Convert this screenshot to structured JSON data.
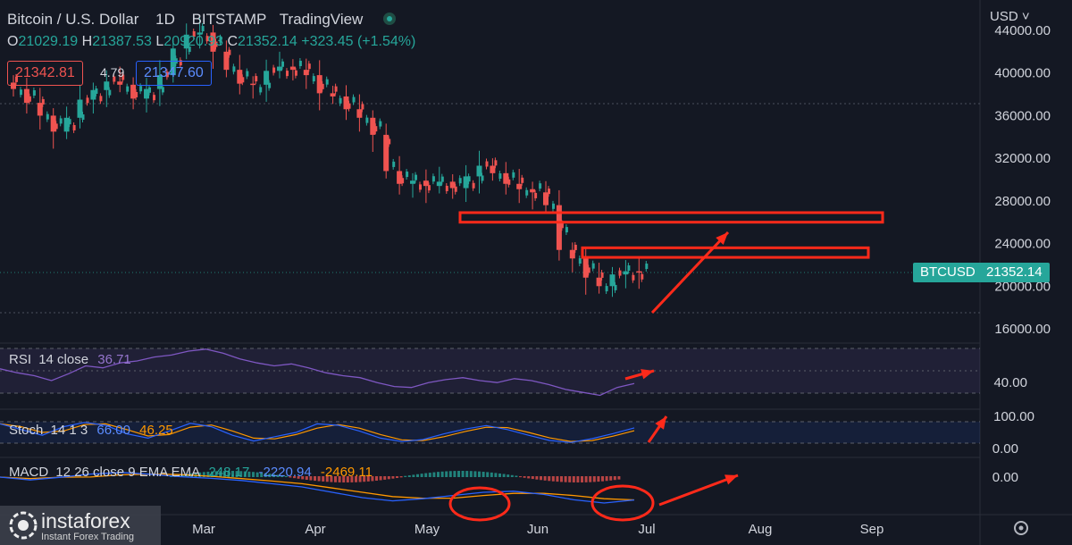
{
  "header": {
    "symbol": "Bitcoin / U.S. Dollar",
    "interval": "1D",
    "exchange": "BITSTAMP",
    "platform": "TradingView",
    "open_label": "O",
    "open_value": "21029.19",
    "high_label": "H",
    "high_value": "21387.53",
    "low_label": "L",
    "low_value": "20920.93",
    "close_label": "C",
    "close_value": "21352.14",
    "change": "+323.45 (+1.54%)"
  },
  "quote": {
    "sell": "21342.81",
    "spread": "4.79",
    "buy": "21347.60"
  },
  "currency_menu": "USD",
  "price_axis": {
    "labels": [
      "44000.00",
      "40000.00",
      "36000.00",
      "32000.00",
      "28000.00",
      "24000.00",
      "20000.00",
      "16000.00"
    ],
    "symbol_tag": "BTCUSD",
    "last_price": "21352.14"
  },
  "time_axis": {
    "labels": [
      "Mar",
      "Apr",
      "May",
      "Jun",
      "Jul",
      "Aug",
      "Sep"
    ]
  },
  "rsi": {
    "label": "RSI",
    "params": "14 close",
    "value": "36.71",
    "axis_label": "40.00"
  },
  "stoch": {
    "label": "Stoch",
    "params": "14 1 3",
    "k_value": "66.00",
    "d_value": "46.25",
    "axis_labels": [
      "100.00",
      "0.00"
    ]
  },
  "macd": {
    "label": "MACD",
    "params": "12 26 close 9 EMA EMA",
    "hist_value": "248.17",
    "macd_value": "-2220.94",
    "signal_value": "-2469.11",
    "axis_label": "0.00"
  },
  "watermark": {
    "name": "instaforex",
    "tagline": "Instant Forex Trading"
  },
  "colors": {
    "background": "#141823",
    "up": "#26a69a",
    "down": "#ef5350",
    "annotation": "#ff2a1a",
    "rsi": "#7e57c2",
    "stoch_k": "#2962ff",
    "stoch_d": "#ff9800",
    "macd": "#2962ff",
    "signal": "#ff9800"
  },
  "chart_data": {
    "type": "candlestick",
    "x_range": [
      "Feb",
      "Sep"
    ],
    "y_range": [
      16000,
      44000
    ],
    "series": [
      {
        "name": "BTCUSD",
        "close": [
          38500,
          37200,
          36000,
          34500,
          35800,
          37500,
          38400,
          39200,
          38900,
          37600,
          38500,
          39800,
          42300,
          43600,
          43800,
          42000,
          40300,
          39000,
          38900,
          40200,
          40600,
          40300,
          39800,
          38100,
          37800,
          36600,
          35800,
          34200,
          30800,
          29600,
          29900,
          29400,
          29800,
          29200,
          30300,
          31300,
          30600,
          29600,
          29100,
          28800,
          27600,
          23400,
          22600,
          20800,
          20000,
          21100,
          21400,
          21352
        ]
      }
    ],
    "annotations": {
      "resistance_zones": [
        {
          "from": 26000,
          "to": 26900
        },
        {
          "from": 22700,
          "to": 23600
        }
      ],
      "arrows": [
        "up",
        "up",
        "up",
        "up"
      ],
      "circles": 2
    },
    "indicators": {
      "rsi": {
        "values": [
          52,
          48,
          45,
          40,
          47,
          55,
          53,
          58,
          60,
          64,
          66,
          70,
          72,
          68,
          62,
          58,
          55,
          57,
          53,
          48,
          45,
          43,
          38,
          34,
          33,
          38,
          41,
          43,
          40,
          38,
          42,
          40,
          36,
          31,
          28,
          25,
          33,
          37
        ]
      },
      "stoch": {
        "values": [
          80,
          60,
          40,
          70,
          85,
          75,
          45,
          30,
          55,
          82,
          70,
          40,
          20,
          35,
          50,
          80,
          75,
          55,
          30,
          18,
          25,
          45,
          62,
          74,
          60,
          40,
          22,
          15,
          28,
          46,
          66
        ]
      },
      "macd": {
        "values": [
          -80,
          -350,
          -100,
          200,
          350,
          180,
          -50,
          -200,
          -400,
          -700,
          -1000,
          -1500,
          -2000,
          -2300,
          -2100,
          -1800,
          -1500,
          -1400,
          -1700,
          -2200,
          -2500,
          -2220
        ]
      }
    }
  }
}
